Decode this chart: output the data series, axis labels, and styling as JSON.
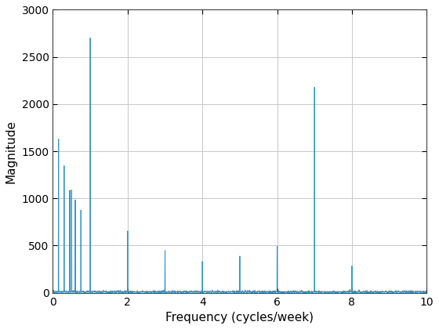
{
  "xlabel": "Frequency (cycles/week)",
  "ylabel": "Magnitude",
  "xlim": [
    0,
    10
  ],
  "ylim": [
    0,
    3000
  ],
  "xticks": [
    0,
    2,
    4,
    6,
    8,
    10
  ],
  "yticks": [
    0,
    500,
    1000,
    1500,
    2000,
    2500,
    3000
  ],
  "line_color": "#3395C8",
  "line_width": 0.8,
  "bg_color": "#ffffff",
  "seed": 7
}
